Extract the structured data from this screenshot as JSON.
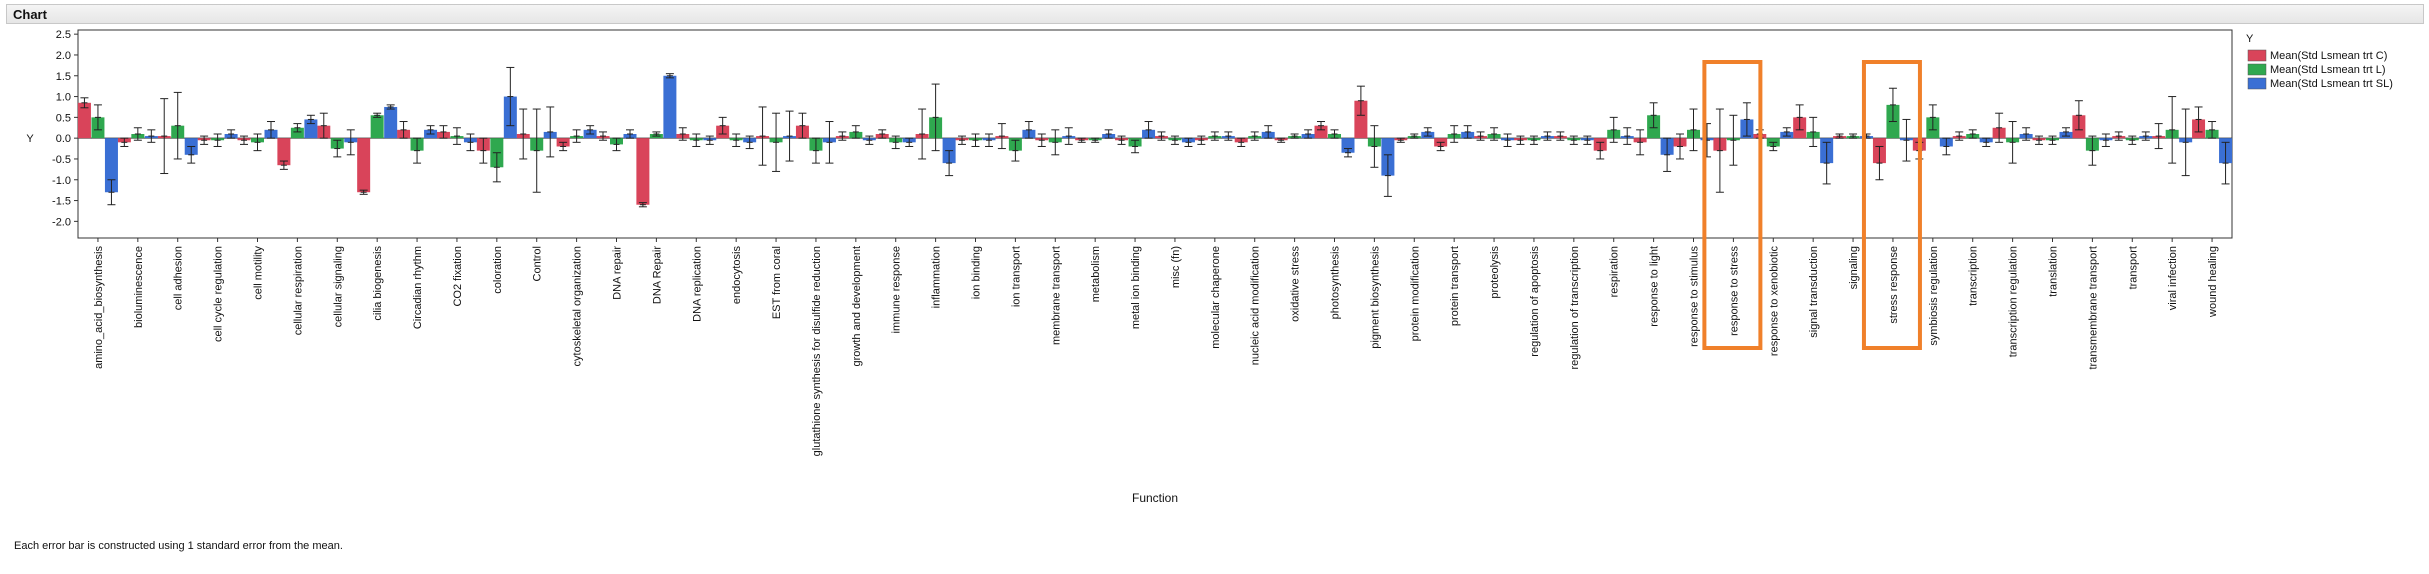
{
  "window": {
    "title": "Chart"
  },
  "footnote": "Each error bar is constructed using 1 standard error from the mean.",
  "colors": {
    "C": "#d9445a",
    "L": "#2fa84f",
    "SL": "#3a6fd4",
    "highlight": "#f0802a"
  },
  "chart_data": {
    "type": "bar",
    "xlabel": "Function",
    "ylabel": "Y",
    "ylim": [
      -2.4,
      2.6
    ],
    "yticks": [
      2.5,
      2.0,
      1.5,
      1.0,
      0.5,
      0.0,
      -0.5,
      -1.0,
      -1.5,
      -2.0
    ],
    "grid": false,
    "legend_title": "Y",
    "legend_position": "right",
    "highlighted_categories": [
      "response to stress",
      "stress response"
    ],
    "categories": [
      "amino_acid_biosynthesis",
      "bioluminescence",
      "cell adhesion",
      "cell cycle regulation",
      "cell motility",
      "cellular respiration",
      "cellular signaling",
      "cilia biogenesis",
      "Circadian rhythm",
      "CO2 fixation",
      "coloration",
      "Control",
      "cytoskeletal organization",
      "DNA repair",
      "DNA Repair",
      "DNA replication",
      "endocytosis",
      "EST from coral",
      "glutathione synthesis for disulfide reduction",
      "growth and development",
      "immune response",
      "inflammation",
      "ion binding",
      "ion transport",
      "membrane transport",
      "metabolism",
      "metal ion binding",
      "misc (fn)",
      "molecular chaperone",
      "nucleic acid modification",
      "oxidative stress",
      "photosynthesis",
      "pigment biosynthesis",
      "protein modification",
      "protein transport",
      "proteolysis",
      "regulation of apoptosis",
      "regulation of transcription",
      "respiration",
      "response to light",
      "response to stimulus",
      "response to stress",
      "response to xenobiotic",
      "signal transduction",
      "signaling",
      "stress response",
      "symbiosis regulation",
      "transcription",
      "transcription regulation",
      "translation",
      "transmembrane transport",
      "transport",
      "viral infection",
      "wound healing"
    ],
    "series": [
      {
        "name": "Mean(Std Lsmean trt C)",
        "values": [
          0.85,
          -0.1,
          0.05,
          -0.05,
          -0.05,
          -0.65,
          0.3,
          -1.3,
          0.2,
          0.15,
          -0.3,
          0.1,
          -0.2,
          0.05,
          -1.6,
          0.1,
          0.3,
          0.05,
          0.3,
          0.05,
          0.1,
          0.1,
          -0.05,
          0.05,
          -0.05,
          -0.05,
          -0.05,
          0.05,
          -0.05,
          -0.1,
          -0.05,
          0.3,
          0.9,
          -0.05,
          -0.2,
          0.05,
          -0.05,
          0.05,
          -0.3,
          -0.1,
          -0.2,
          -0.3,
          0.1,
          0.5,
          0.05,
          -0.6,
          -0.3,
          0.05,
          0.25,
          -0.05,
          0.55,
          0.05,
          0.05,
          0.45
        ],
        "errors": [
          0.12,
          0.1,
          0.9,
          0.1,
          0.1,
          0.1,
          0.3,
          0.05,
          0.2,
          0.15,
          0.3,
          0.6,
          0.1,
          0.1,
          0.05,
          0.15,
          0.2,
          0.7,
          0.3,
          0.1,
          0.1,
          0.6,
          0.1,
          0.3,
          0.15,
          0.05,
          0.1,
          0.1,
          0.1,
          0.1,
          0.05,
          0.1,
          0.35,
          0.05,
          0.1,
          0.1,
          0.1,
          0.1,
          0.2,
          0.3,
          0.3,
          1.0,
          0.1,
          0.3,
          0.05,
          0.4,
          0.2,
          0.1,
          0.35,
          0.1,
          0.35,
          0.1,
          0.3,
          0.3
        ]
      },
      {
        "name": "Mean(Std Lsmean trt L)",
        "values": [
          0.5,
          0.1,
          0.3,
          -0.05,
          -0.1,
          0.25,
          -0.25,
          0.55,
          -0.3,
          0.05,
          -0.7,
          -0.3,
          0.05,
          -0.15,
          0.1,
          -0.05,
          -0.05,
          -0.1,
          -0.3,
          0.15,
          -0.1,
          0.5,
          -0.05,
          -0.3,
          -0.1,
          -0.05,
          -0.2,
          -0.05,
          0.05,
          0.05,
          0.05,
          0.1,
          -0.2,
          0.05,
          0.1,
          0.1,
          -0.05,
          -0.05,
          0.2,
          0.55,
          0.2,
          -0.05,
          -0.2,
          0.15,
          0.05,
          0.8,
          0.5,
          0.1,
          -0.1,
          -0.05,
          -0.3,
          -0.05,
          0.2,
          0.2
        ],
        "errors": [
          0.3,
          0.15,
          0.8,
          0.15,
          0.2,
          0.1,
          0.2,
          0.05,
          0.3,
          0.2,
          0.35,
          1.0,
          0.15,
          0.15,
          0.05,
          0.15,
          0.15,
          0.7,
          0.3,
          0.15,
          0.15,
          0.8,
          0.15,
          0.25,
          0.3,
          0.05,
          0.15,
          0.1,
          0.1,
          0.1,
          0.05,
          0.1,
          0.5,
          0.05,
          0.2,
          0.15,
          0.1,
          0.1,
          0.3,
          0.3,
          0.5,
          0.6,
          0.1,
          0.35,
          0.05,
          0.4,
          0.3,
          0.1,
          0.5,
          0.1,
          0.35,
          0.1,
          0.8,
          0.2
        ]
      },
      {
        "name": "Mean(Std Lsmean trt SL)",
        "values": [
          -1.3,
          0.05,
          -0.4,
          0.1,
          0.2,
          0.45,
          -0.1,
          0.75,
          0.2,
          -0.1,
          1.0,
          0.15,
          0.2,
          0.1,
          1.5,
          -0.05,
          -0.1,
          0.05,
          -0.1,
          -0.05,
          -0.1,
          -0.6,
          -0.05,
          0.2,
          0.05,
          0.1,
          0.2,
          -0.1,
          0.05,
          0.15,
          0.1,
          -0.35,
          -0.9,
          0.15,
          0.15,
          -0.05,
          0.05,
          -0.05,
          0.05,
          -0.4,
          -0.05,
          0.45,
          0.15,
          -0.6,
          0.05,
          -0.05,
          -0.2,
          -0.1,
          0.1,
          0.15,
          -0.05,
          0.05,
          -0.1,
          -0.6
        ],
        "errors": [
          0.3,
          0.15,
          0.2,
          0.1,
          0.2,
          0.1,
          0.3,
          0.05,
          0.1,
          0.2,
          0.7,
          0.6,
          0.1,
          0.1,
          0.05,
          0.1,
          0.15,
          0.6,
          0.5,
          0.1,
          0.1,
          0.3,
          0.15,
          0.2,
          0.2,
          0.1,
          0.2,
          0.1,
          0.1,
          0.15,
          0.1,
          0.1,
          0.5,
          0.1,
          0.15,
          0.15,
          0.1,
          0.1,
          0.2,
          0.4,
          0.4,
          0.4,
          0.1,
          0.5,
          0.05,
          0.5,
          0.2,
          0.1,
          0.15,
          0.1,
          0.15,
          0.1,
          0.8,
          0.5
        ]
      }
    ]
  }
}
